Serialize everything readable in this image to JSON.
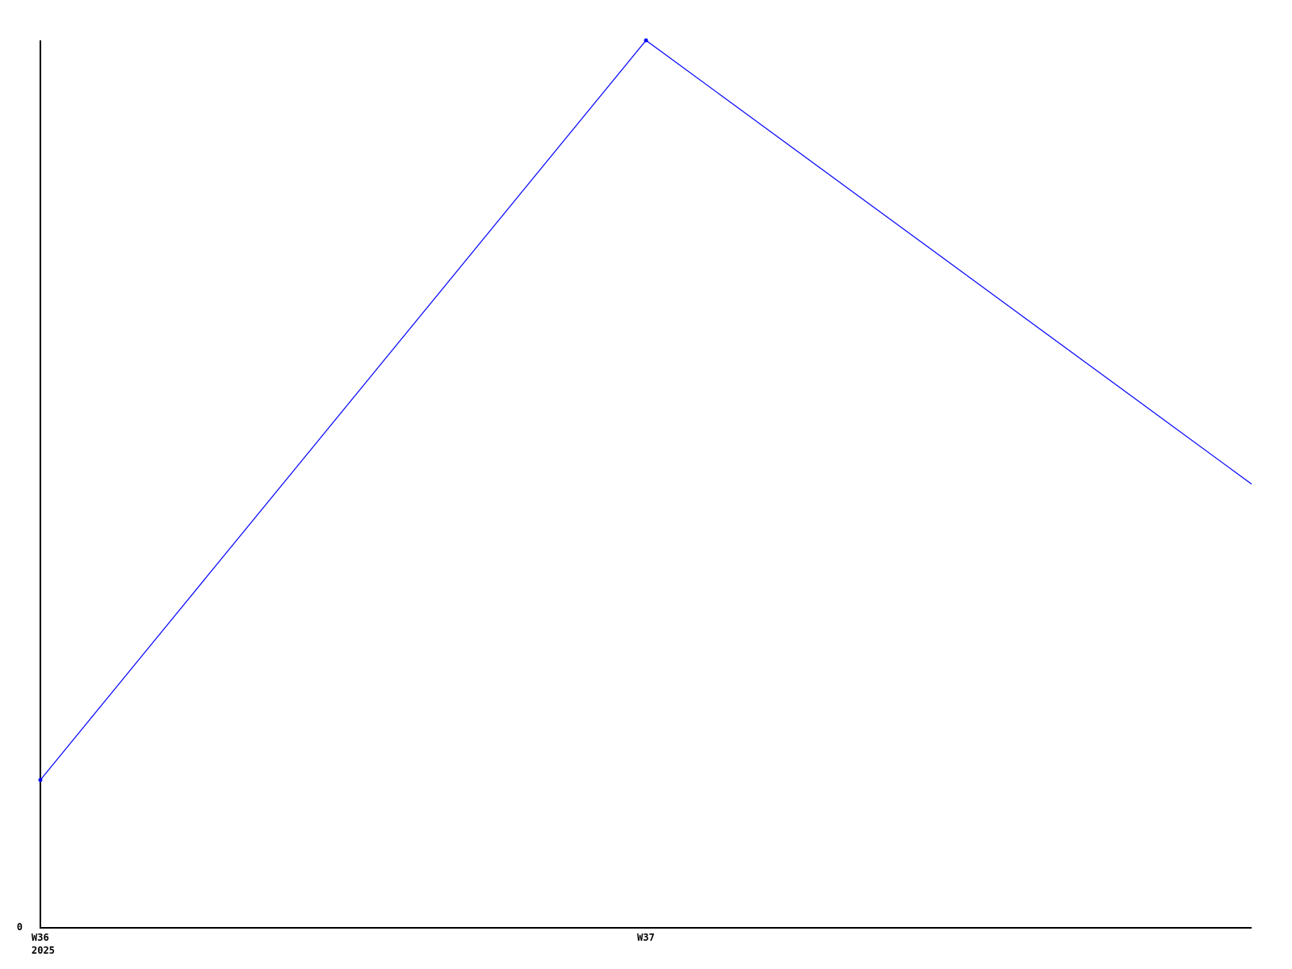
{
  "page": {
    "background_color": "#ffffff"
  },
  "chart_data": {
    "type": "line",
    "title": "",
    "xlabel": "",
    "ylabel": "",
    "grid": false,
    "legend_position": "none",
    "axis_color": "#000000",
    "x": [
      0,
      1,
      2
    ],
    "series": [
      {
        "name": "series-1",
        "color": "#0000ff",
        "values": [
          1,
          6,
          3
        ],
        "marker_at": [
          true,
          true,
          false
        ]
      }
    ],
    "x_ticks": [
      {
        "pos": 0,
        "line1": "W36",
        "line2": "2025"
      },
      {
        "pos": 1,
        "line1": "W37",
        "line2": ""
      }
    ],
    "y_ticks": [
      {
        "pos": 0,
        "label": "0"
      }
    ],
    "xlim": [
      0,
      2
    ],
    "ylim": [
      0,
      6
    ]
  }
}
